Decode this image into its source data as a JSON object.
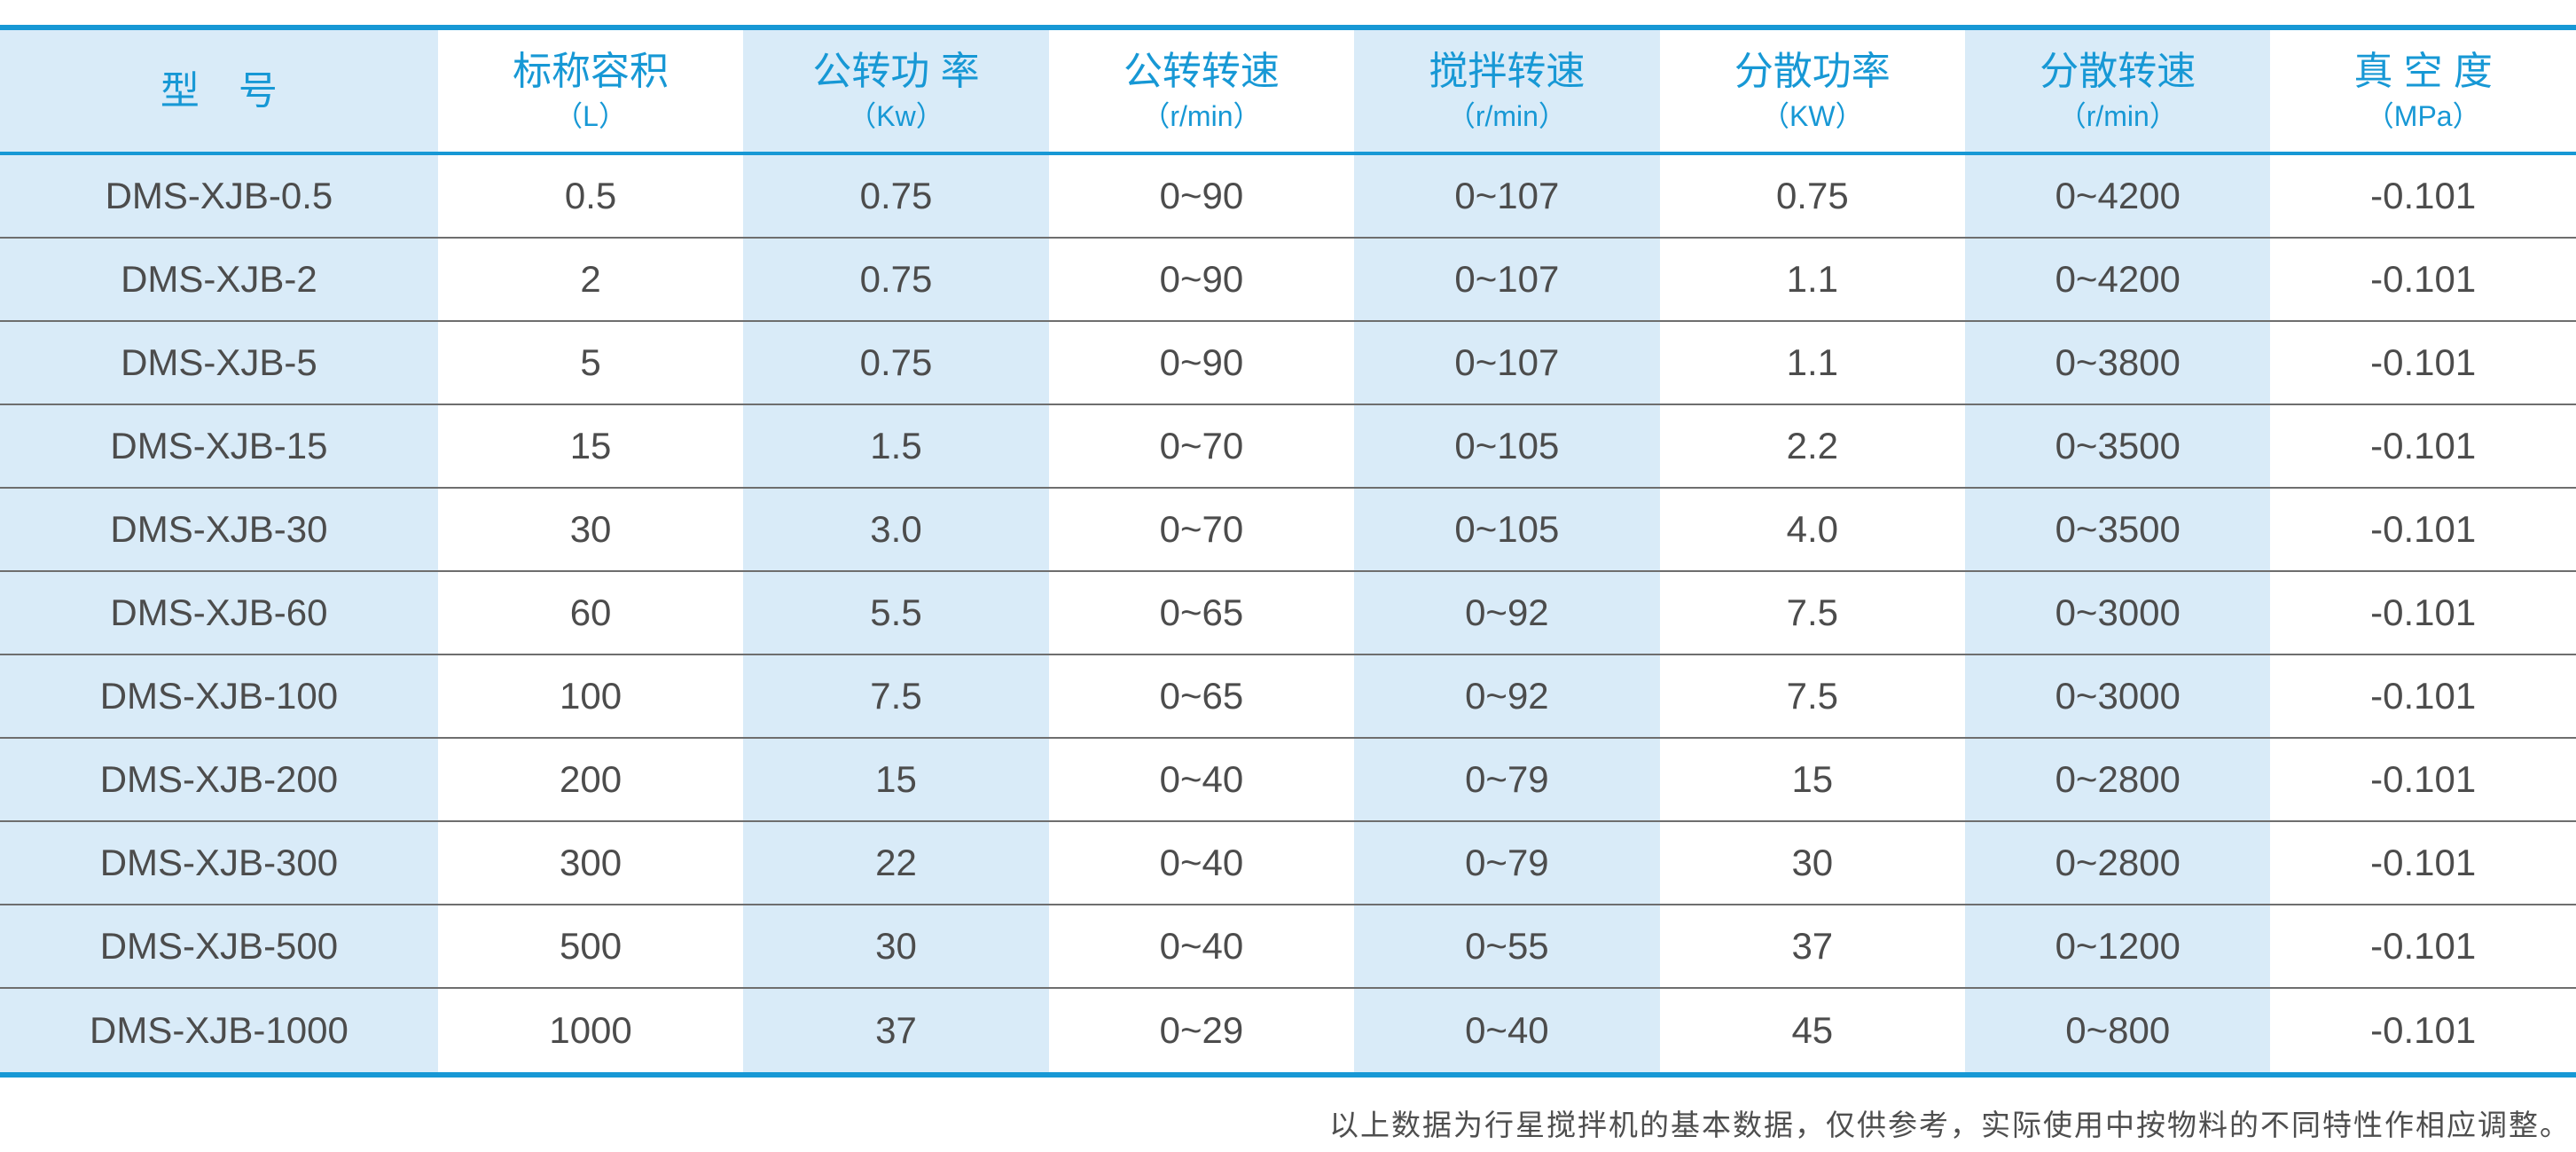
{
  "colors": {
    "accent_blue": "#1798d5",
    "band_light_blue": "#d9ebf8",
    "body_text": "#4c4c4c",
    "row_separator": "#6e6e6e",
    "footer_text": "#4e4e4e",
    "page_background": "#ffffff"
  },
  "table": {
    "columns": [
      {
        "id": "model",
        "label": "型　号",
        "unit": "",
        "shaded": true
      },
      {
        "id": "nominal-volume",
        "label": "标称容积",
        "unit": "（L）",
        "shaded": false
      },
      {
        "id": "revolution-power",
        "label": "公转功 率",
        "unit": "（Kw）",
        "shaded": true
      },
      {
        "id": "revolution-speed",
        "label": "公转转速",
        "unit": "（r/min）",
        "shaded": false
      },
      {
        "id": "stirring-speed",
        "label": "搅拌转速",
        "unit": "（r/min）",
        "shaded": true
      },
      {
        "id": "dispersing-power",
        "label": "分散功率",
        "unit": "（KW）",
        "shaded": false
      },
      {
        "id": "dispersing-speed",
        "label": "分散转速",
        "unit": "（r/min）",
        "shaded": true
      },
      {
        "id": "vacuum-degree",
        "label": "真 空 度",
        "unit": "（MPa）",
        "shaded": false
      }
    ],
    "rows": [
      [
        "DMS-XJB-0.5",
        "0.5",
        "0.75",
        "0~90",
        "0~107",
        "0.75",
        "0~4200",
        "-0.101"
      ],
      [
        "DMS-XJB-2",
        "2",
        "0.75",
        "0~90",
        "0~107",
        "1.1",
        "0~4200",
        "-0.101"
      ],
      [
        "DMS-XJB-5",
        "5",
        "0.75",
        "0~90",
        "0~107",
        "1.1",
        "0~3800",
        "-0.101"
      ],
      [
        "DMS-XJB-15",
        "15",
        "1.5",
        "0~70",
        "0~105",
        "2.2",
        "0~3500",
        "-0.101"
      ],
      [
        "DMS-XJB-30",
        "30",
        "3.0",
        "0~70",
        "0~105",
        "4.0",
        "0~3500",
        "-0.101"
      ],
      [
        "DMS-XJB-60",
        "60",
        "5.5",
        "0~65",
        "0~92",
        "7.5",
        "0~3000",
        "-0.101"
      ],
      [
        "DMS-XJB-100",
        "100",
        "7.5",
        "0~65",
        "0~92",
        "7.5",
        "0~3000",
        "-0.101"
      ],
      [
        "DMS-XJB-200",
        "200",
        "15",
        "0~40",
        "0~79",
        "15",
        "0~2800",
        "-0.101"
      ],
      [
        "DMS-XJB-300",
        "300",
        "22",
        "0~40",
        "0~79",
        "30",
        "0~2800",
        "-0.101"
      ],
      [
        "DMS-XJB-500",
        "500",
        "30",
        "0~40",
        "0~55",
        "37",
        "0~1200",
        "-0.101"
      ],
      [
        "DMS-XJB-1000",
        "1000",
        "37",
        "0~29",
        "0~40",
        "45",
        "0~800",
        "-0.101"
      ]
    ]
  },
  "footer": {
    "note": "以上数据为行星搅拌机的基本数据，仅供参考，实际使用中按物料的不同特性作相应调整。"
  },
  "chart_data": {
    "type": "table",
    "title": "",
    "categories": [
      "型号",
      "标称容积（L）",
      "公转功率（Kw）",
      "公转转速（r/min）",
      "搅拌转速（r/min）",
      "分散功率（KW）",
      "分散转速（r/min）",
      "真空度（MPa）"
    ],
    "series": [
      {
        "name": "DMS-XJB-0.5",
        "values": [
          "0.5",
          "0.75",
          "0~90",
          "0~107",
          "0.75",
          "0~4200",
          "-0.101"
        ]
      },
      {
        "name": "DMS-XJB-2",
        "values": [
          "2",
          "0.75",
          "0~90",
          "0~107",
          "1.1",
          "0~4200",
          "-0.101"
        ]
      },
      {
        "name": "DMS-XJB-5",
        "values": [
          "5",
          "0.75",
          "0~90",
          "0~107",
          "1.1",
          "0~3800",
          "-0.101"
        ]
      },
      {
        "name": "DMS-XJB-15",
        "values": [
          "15",
          "1.5",
          "0~70",
          "0~105",
          "2.2",
          "0~3500",
          "-0.101"
        ]
      },
      {
        "name": "DMS-XJB-30",
        "values": [
          "30",
          "3.0",
          "0~70",
          "0~105",
          "4.0",
          "0~3500",
          "-0.101"
        ]
      },
      {
        "name": "DMS-XJB-60",
        "values": [
          "60",
          "5.5",
          "0~65",
          "0~92",
          "7.5",
          "0~3000",
          "-0.101"
        ]
      },
      {
        "name": "DMS-XJB-100",
        "values": [
          "100",
          "7.5",
          "0~65",
          "0~92",
          "7.5",
          "0~3000",
          "-0.101"
        ]
      },
      {
        "name": "DMS-XJB-200",
        "values": [
          "200",
          "15",
          "0~40",
          "0~79",
          "15",
          "0~2800",
          "-0.101"
        ]
      },
      {
        "name": "DMS-XJB-300",
        "values": [
          "300",
          "22",
          "0~40",
          "0~79",
          "30",
          "0~2800",
          "-0.101"
        ]
      },
      {
        "name": "DMS-XJB-500",
        "values": [
          "500",
          "30",
          "0~40",
          "0~55",
          "37",
          "0~1200",
          "-0.101"
        ]
      },
      {
        "name": "DMS-XJB-1000",
        "values": [
          "1000",
          "37",
          "0~29",
          "0~40",
          "45",
          "0~800",
          "-0.101"
        ]
      }
    ]
  }
}
